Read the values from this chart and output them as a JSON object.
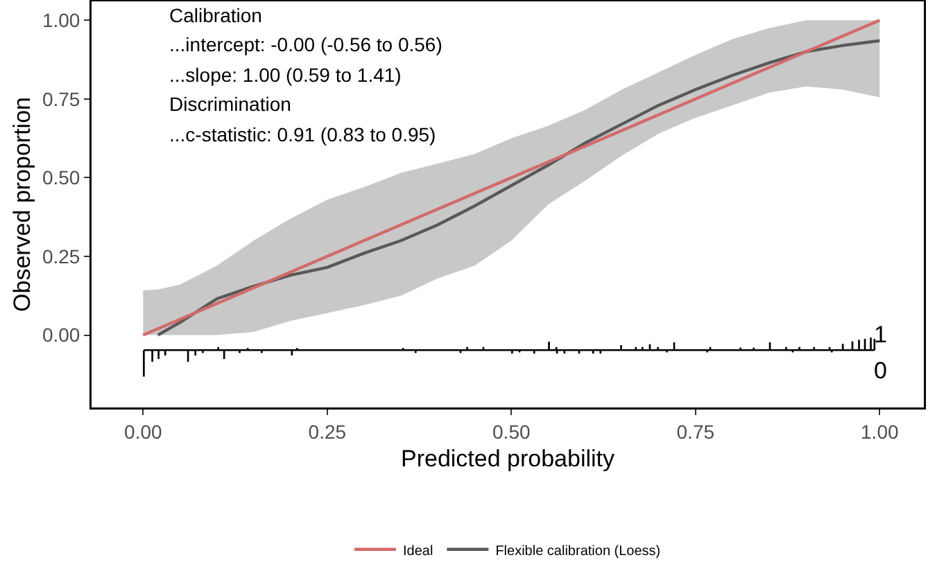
{
  "chart_data": {
    "type": "line",
    "xlabel": "Predicted probability",
    "ylabel": "Observed proportion",
    "xlim": [
      -0.07,
      1.06
    ],
    "ylim": [
      -0.23,
      1.06
    ],
    "xticks": [
      {
        "value": 0,
        "label": "0.00"
      },
      {
        "value": 0.25,
        "label": "0.25"
      },
      {
        "value": 0.5,
        "label": "0.50"
      },
      {
        "value": 0.75,
        "label": "0.75"
      },
      {
        "value": 1,
        "label": "1.00"
      }
    ],
    "yticks": [
      {
        "value": 0,
        "label": "0.00"
      },
      {
        "value": 0.25,
        "label": "0.25"
      },
      {
        "value": 0.5,
        "label": "0.50"
      },
      {
        "value": 0.75,
        "label": "0.75"
      },
      {
        "value": 1,
        "label": "1.00"
      }
    ],
    "grid": false,
    "legend": "bottom",
    "marker": "none",
    "line_style": "solid",
    "series": [
      {
        "name": "Ideal",
        "color": "#d46a6a",
        "x": [
          0,
          1
        ],
        "values": [
          0,
          1
        ]
      },
      {
        "name": "Flexible calibration (Loess)",
        "color": "#595959",
        "x": [
          0,
          0.02,
          0.05,
          0.1,
          0.15,
          0.2,
          0.25,
          0.3,
          0.35,
          0.4,
          0.45,
          0.5,
          0.55,
          0.6,
          0.65,
          0.7,
          0.75,
          0.8,
          0.85,
          0.9,
          0.95,
          1.0
        ],
        "values": [
          null,
          0.0,
          0.04,
          0.115,
          0.155,
          0.19,
          0.215,
          0.26,
          0.3,
          0.35,
          0.41,
          0.475,
          0.54,
          0.61,
          0.67,
          0.73,
          0.78,
          0.825,
          0.865,
          0.9,
          0.92,
          0.935
        ],
        "lower": [
          0,
          0,
          0,
          0,
          0.01,
          0.045,
          0.07,
          0.095,
          0.125,
          0.18,
          0.22,
          0.3,
          0.415,
          0.49,
          0.57,
          0.64,
          0.69,
          0.73,
          0.77,
          0.79,
          0.78,
          0.755
        ],
        "upper": [
          0.142,
          0.145,
          0.16,
          0.22,
          0.3,
          0.37,
          0.43,
          0.47,
          0.515,
          0.545,
          0.575,
          0.625,
          0.665,
          0.715,
          0.78,
          0.835,
          0.89,
          0.94,
          0.975,
          1.0,
          1.0,
          1.0
        ]
      },
      {
        "type": "bar",
        "color": "#000000",
        "x": [
          0.001,
          0.0125,
          0.021,
          0.03,
          0.061,
          0.071,
          0.081,
          0.102,
          0.11,
          0.131,
          0.142,
          0.161,
          0.202,
          0.209,
          0.353,
          0.37,
          0.431,
          0.44,
          0.462,
          0.501,
          0.511,
          0.531,
          0.551,
          0.561,
          0.562,
          0.572,
          0.592,
          0.611,
          0.621,
          0.649,
          0.669,
          0.678,
          0.688,
          0.699,
          0.711,
          0.721,
          0.766,
          0.77,
          0.811,
          0.829,
          0.851,
          0.873,
          0.882,
          0.891,
          0.911,
          0.932,
          0.935,
          0.95,
          0.963,
          0.972,
          0.98,
          0.988,
          0.993
        ],
        "values": [
          -0.084,
          -0.037,
          -0.028,
          -0.017,
          -0.037,
          -0.017,
          -0.009,
          0.01,
          -0.028,
          -0.009,
          0.007,
          -0.009,
          -0.017,
          0.007,
          0.007,
          -0.009,
          -0.009,
          0.01,
          0.01,
          -0.011,
          -0.007,
          -0.011,
          0.027,
          0.01,
          -0.011,
          -0.011,
          -0.011,
          -0.011,
          -0.011,
          0.016,
          0.01,
          0.01,
          0.019,
          0.01,
          -0.007,
          0.025,
          -0.007,
          0.01,
          0.008,
          0.008,
          0.025,
          0.01,
          -0.007,
          0.01,
          0.01,
          0.01,
          -0.007,
          0.02,
          0.028,
          0.033,
          0.036,
          0.04,
          0.036
        ],
        "base": [
          -0.048,
          -0.048,
          -0.048,
          -0.048,
          -0.048,
          -0.048,
          -0.048,
          -0.048,
          -0.048,
          -0.048,
          -0.048,
          -0.048,
          -0.048,
          -0.048,
          -0.048,
          -0.048,
          -0.048,
          -0.048,
          -0.048,
          -0.048,
          -0.048,
          -0.048,
          -0.048,
          -0.048,
          -0.048,
          -0.048,
          -0.048,
          -0.048,
          -0.048,
          -0.048,
          -0.048,
          -0.048,
          -0.048,
          -0.048,
          -0.048,
          -0.048,
          -0.048,
          -0.048,
          -0.048,
          -0.048,
          -0.048,
          -0.048,
          -0.048,
          -0.048,
          -0.048,
          -0.048,
          -0.048,
          -0.048,
          -0.048,
          -0.048,
          -0.048,
          -0.048,
          -0.048
        ]
      }
    ],
    "ref_lines": [
      {
        "axis": "y",
        "value": -0.048,
        "color": "#000000"
      }
    ],
    "annotations": [
      "Calibration",
      "...intercept: -0.00 (-0.56 to 0.56)",
      "...slope: 1.00 (0.59 to 1.41)",
      "Discrimination",
      "...c-statistic: 0.91 (0.83 to 0.95)",
      {
        "text": "1",
        "x": 1.0,
        "y": 0.0
      },
      "0"
    ]
  }
}
